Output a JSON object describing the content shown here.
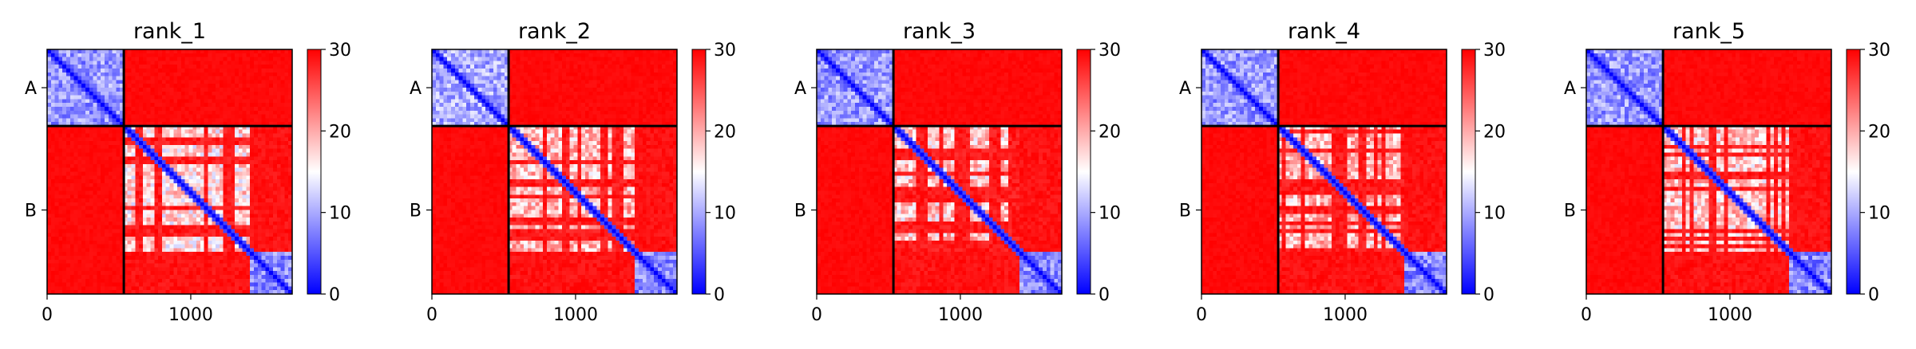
{
  "chart_data": [
    {
      "type": "heatmap",
      "title": "rank_1",
      "xlabel": "",
      "ylabel": "",
      "x_ticks": [
        0,
        1000
      ],
      "xlim": [
        0,
        1706
      ],
      "y_tick_labels": [
        "A",
        "B"
      ],
      "chain_boundary": 534,
      "seq_length": 1706,
      "colorbar": {
        "ticks": [
          0,
          10,
          20,
          30
        ],
        "range": [
          0,
          30
        ],
        "cmap": [
          "#0000ff",
          "#ffffff",
          "#ff0000"
        ]
      },
      "block_means": {
        "A-A": 9,
        "A-B": 29,
        "B-A": 29,
        "B-B": 17
      },
      "diagonal_value": 0,
      "sub_blocks": [
        [
          534,
          1400
        ],
        [
          1400,
          1706
        ]
      ],
      "grid": false
    },
    {
      "type": "heatmap",
      "title": "rank_2",
      "xlabel": "",
      "ylabel": "",
      "x_ticks": [
        0,
        1000
      ],
      "xlim": [
        0,
        1706
      ],
      "y_tick_labels": [
        "A",
        "B"
      ],
      "chain_boundary": 534,
      "seq_length": 1706,
      "colorbar": {
        "ticks": [
          0,
          10,
          20,
          30
        ],
        "range": [
          0,
          30
        ],
        "cmap": [
          "#0000ff",
          "#ffffff",
          "#ff0000"
        ]
      },
      "block_means": {
        "A-A": 10,
        "A-B": 29,
        "B-A": 29,
        "B-B": 19
      },
      "diagonal_value": 0,
      "sub_blocks": [
        [
          534,
          1400
        ],
        [
          1400,
          1706
        ]
      ],
      "grid": false
    },
    {
      "type": "heatmap",
      "title": "rank_3",
      "xlabel": "",
      "ylabel": "",
      "x_ticks": [
        0,
        1000
      ],
      "xlim": [
        0,
        1706
      ],
      "y_tick_labels": [
        "A",
        "B"
      ],
      "chain_boundary": 534,
      "seq_length": 1706,
      "colorbar": {
        "ticks": [
          0,
          10,
          20,
          30
        ],
        "range": [
          0,
          30
        ],
        "cmap": [
          "#0000ff",
          "#ffffff",
          "#ff0000"
        ]
      },
      "block_means": {
        "A-A": 9,
        "A-B": 29,
        "B-A": 29,
        "B-B": 18
      },
      "diagonal_value": 0,
      "sub_blocks": [
        [
          534,
          1400
        ],
        [
          1400,
          1706
        ]
      ],
      "grid": false
    },
    {
      "type": "heatmap",
      "title": "rank_4",
      "xlabel": "",
      "ylabel": "",
      "x_ticks": [
        0,
        1000
      ],
      "xlim": [
        0,
        1706
      ],
      "y_tick_labels": [
        "A",
        "B"
      ],
      "chain_boundary": 534,
      "seq_length": 1706,
      "colorbar": {
        "ticks": [
          0,
          10,
          20,
          30
        ],
        "range": [
          0,
          30
        ],
        "cmap": [
          "#0000ff",
          "#ffffff",
          "#ff0000"
        ]
      },
      "block_means": {
        "A-A": 9,
        "A-B": 29,
        "B-A": 29,
        "B-B": 19
      },
      "diagonal_value": 0,
      "sub_blocks": [
        [
          534,
          1400
        ],
        [
          1400,
          1706
        ]
      ],
      "grid": false
    },
    {
      "type": "heatmap",
      "title": "rank_5",
      "xlabel": "",
      "ylabel": "",
      "x_ticks": [
        0,
        1000
      ],
      "xlim": [
        0,
        1706
      ],
      "y_tick_labels": [
        "A",
        "B"
      ],
      "chain_boundary": 534,
      "seq_length": 1706,
      "colorbar": {
        "ticks": [
          0,
          10,
          20,
          30
        ],
        "range": [
          0,
          30
        ],
        "cmap": [
          "#0000ff",
          "#ffffff",
          "#ff0000"
        ]
      },
      "block_means": {
        "A-A": 9,
        "A-B": 29,
        "B-A": 29,
        "B-B": 18
      },
      "diagonal_value": 0,
      "sub_blocks": [
        [
          534,
          1400
        ],
        [
          1400,
          1706
        ]
      ],
      "grid": false
    }
  ]
}
